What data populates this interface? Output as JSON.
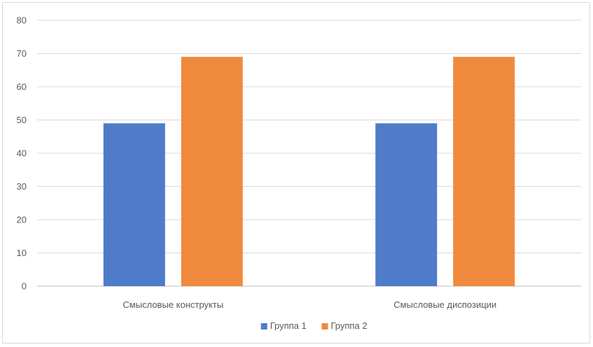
{
  "chart_data": {
    "type": "bar",
    "title": "",
    "xlabel": "",
    "ylabel": "",
    "categories": [
      "Смысловые конструкты",
      "Смысловые диспозиции"
    ],
    "series": [
      {
        "name": "Группа 1",
        "values": [
          49,
          49
        ],
        "color": "#4e7cc9"
      },
      {
        "name": "Группа 2",
        "values": [
          69,
          69
        ],
        "color": "#ef8a3c"
      }
    ],
    "ylim": [
      0,
      80
    ],
    "yticks": [
      0,
      10,
      20,
      30,
      40,
      50,
      60,
      70,
      80
    ],
    "grid": true,
    "legend_position": "bottom"
  }
}
